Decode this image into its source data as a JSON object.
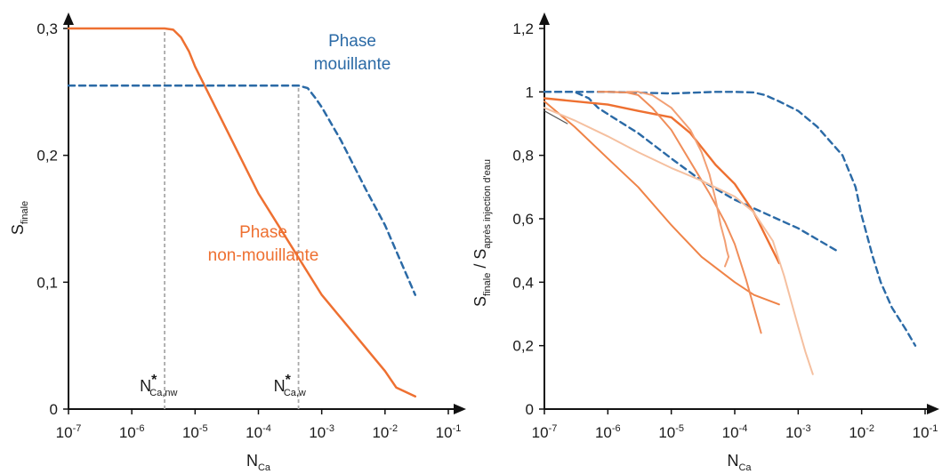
{
  "chart_data": [
    {
      "type": "line",
      "xscale": "log",
      "xlim": [
        "10^-7",
        "10^-1"
      ],
      "ylim": [
        0,
        0.32
      ],
      "x_tick_labels": [
        "10-7",
        "10-6",
        "10-5",
        "10-4",
        "10-3",
        "10-2",
        "10-1"
      ],
      "y_tick_labels": [
        "0",
        "0,1",
        "0,2",
        "0,3"
      ],
      "ylabel": {
        "main": "S",
        "sub": "finale"
      },
      "xlabel": {
        "main": "N",
        "sub": "Ca"
      },
      "series": [
        {
          "name": "Phase non-mouillante",
          "label_lines": [
            "Phase",
            "non-mouillante"
          ],
          "color": "#ee7031",
          "dash": "solid",
          "x": [
            1e-07,
            1e-06,
            3.3e-06,
            4.5e-06,
            6e-06,
            8e-06,
            1e-05,
            0.0001,
            0.001,
            0.01,
            0.015,
            0.03
          ],
          "y": [
            0.3,
            0.3,
            0.3,
            0.299,
            0.293,
            0.282,
            0.27,
            0.17,
            0.09,
            0.03,
            0.017,
            0.01
          ]
        },
        {
          "name": "Phase mouillante",
          "label_lines": [
            "Phase",
            "mouillante"
          ],
          "color": "#2b6aa6",
          "dash": "dashed",
          "x": [
            1e-07,
            1e-06,
            1e-05,
            0.0001,
            0.00043,
            0.0006,
            0.0008,
            0.001,
            0.002,
            0.005,
            0.01,
            0.03
          ],
          "y": [
            0.255,
            0.255,
            0.255,
            0.255,
            0.255,
            0.253,
            0.245,
            0.238,
            0.212,
            0.173,
            0.145,
            0.09
          ]
        }
      ],
      "annotations": [
        {
          "main": "N",
          "sup": "*",
          "sub": "Ca,nw",
          "x": 3.3e-06
        },
        {
          "main": "N",
          "sup": "*",
          "sub": "Ca,w",
          "x": 0.00043
        }
      ]
    },
    {
      "type": "line",
      "xscale": "log",
      "xlim": [
        "10^-7",
        "10^-1"
      ],
      "ylim": [
        0,
        1.25
      ],
      "x_tick_labels": [
        "10-7",
        "10-6",
        "10-5",
        "10-4",
        "10-3",
        "10-2",
        "10-1"
      ],
      "y_tick_labels": [
        "0",
        "0,2",
        "0,4",
        "0,6",
        "0,8",
        "1",
        "1,2"
      ],
      "ylabel": {
        "main": "S",
        "sub": "finale",
        "main2": " / S",
        "sub2": "après injection d'eau"
      },
      "xlabel": {
        "main": "N",
        "sub": "Ca"
      },
      "series": [
        {
          "color": "#2b6aa6",
          "dash": "dashed",
          "width": 2.4,
          "x": [
            1e-07,
            1e-06,
            1e-05,
            5e-05,
            0.0001,
            0.0002,
            0.0003,
            0.0005,
            0.001,
            0.002,
            0.005,
            0.008,
            0.01,
            0.015,
            0.02,
            0.03,
            0.05,
            0.07
          ],
          "y": [
            1.0,
            1.0,
            0.995,
            1.0,
            1.0,
            0.998,
            0.99,
            0.97,
            0.94,
            0.89,
            0.8,
            0.7,
            0.61,
            0.48,
            0.4,
            0.32,
            0.25,
            0.2
          ]
        },
        {
          "color": "#2b6aa6",
          "dash": "dashed",
          "width": 2.4,
          "x": [
            1e-07,
            3e-07,
            5e-07,
            7e-07,
            1e-06,
            3e-06,
            1e-05,
            3e-05,
            0.0001,
            0.001,
            0.004
          ],
          "y": [
            1.0,
            1.0,
            0.98,
            0.95,
            0.93,
            0.87,
            0.79,
            0.72,
            0.66,
            0.57,
            0.5
          ]
        },
        {
          "color": "#ee7031",
          "dash": "solid",
          "width": 2.4,
          "x": [
            1e-07,
            1e-06,
            3e-06,
            1e-05,
            2e-05,
            5e-05,
            0.0001,
            0.0002,
            0.0005
          ],
          "y": [
            0.98,
            0.96,
            0.94,
            0.92,
            0.87,
            0.77,
            0.71,
            0.62,
            0.46
          ]
        },
        {
          "color": "#ef8347",
          "dash": "solid",
          "width": 2.0,
          "x": [
            1e-07,
            3e-07,
            1e-06,
            3e-06,
            1e-05,
            3e-05,
            0.0001,
            0.0002,
            0.0005
          ],
          "y": [
            0.97,
            0.89,
            0.79,
            0.7,
            0.58,
            0.48,
            0.4,
            0.36,
            0.33
          ]
        },
        {
          "color": "#f08d59",
          "dash": "solid",
          "width": 2.0,
          "x": [
            7e-07,
            1e-06,
            2e-06,
            3e-06,
            5e-06,
            1e-05,
            2e-05,
            4e-05,
            7e-05,
            0.0001,
            0.00015,
            0.00026
          ],
          "y": [
            1.0,
            1.0,
            0.998,
            0.99,
            0.95,
            0.88,
            0.78,
            0.68,
            0.59,
            0.52,
            0.41,
            0.24
          ]
        },
        {
          "color": "#f29f74",
          "dash": "solid",
          "width": 2.0,
          "x": [
            2e-06,
            3e-06,
            5e-06,
            1e-05,
            2e-05,
            3e-05,
            4e-05,
            5e-05,
            6e-05,
            7e-05,
            7.5e-05,
            8e-05,
            7e-05
          ],
          "y": [
            1.0,
            1.0,
            0.99,
            0.95,
            0.88,
            0.81,
            0.74,
            0.66,
            0.58,
            0.53,
            0.5,
            0.48,
            0.45
          ]
        },
        {
          "color": "#f5c0a0",
          "dash": "solid",
          "width": 2.0,
          "x": [
            1e-07,
            3e-07,
            1e-06,
            3e-06,
            1e-05,
            3e-05,
            0.0001,
            0.0002,
            0.0004,
            0.0006,
            0.001,
            0.0013,
            0.0017
          ],
          "y": [
            0.95,
            0.91,
            0.86,
            0.81,
            0.76,
            0.72,
            0.67,
            0.62,
            0.53,
            0.42,
            0.26,
            0.18,
            0.11
          ]
        },
        {
          "color": "#555555",
          "dash": "solid",
          "width": 1.2,
          "x": [
            1e-07,
            2.3e-07
          ],
          "y": [
            0.94,
            0.9
          ]
        }
      ]
    }
  ]
}
